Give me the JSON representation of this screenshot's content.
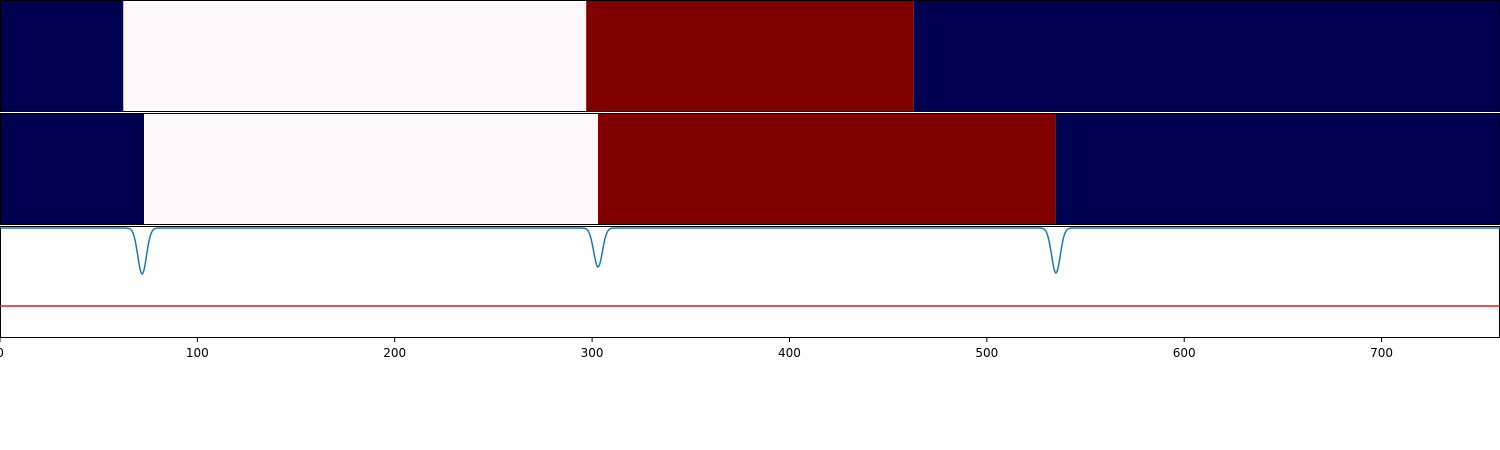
{
  "chart_data": {
    "type": "heatmap",
    "title": "",
    "xlabel": "",
    "ylabel": "",
    "xlim": [
      0,
      760
    ],
    "x_ticks": [
      0,
      100,
      200,
      300,
      400,
      500,
      600,
      700
    ],
    "x_tick_labels": [
      "0",
      "100",
      "200",
      "300",
      "400",
      "500",
      "600",
      "700"
    ],
    "grid": false,
    "colors": {
      "low": "#000050",
      "mid": "#fff8fb",
      "high": "#800000",
      "signal_line": "#1f77b4",
      "threshold_line": "#e41a1c"
    },
    "segment_rows": [
      {
        "segments": [
          {
            "start": 0,
            "end": 62.5,
            "level": "low"
          },
          {
            "start": 62.5,
            "end": 297,
            "level": "mid"
          },
          {
            "start": 297,
            "end": 463,
            "level": "high"
          },
          {
            "start": 463,
            "end": 760,
            "level": "low"
          }
        ]
      },
      {
        "segments": [
          {
            "start": 0,
            "end": 73,
            "level": "low"
          },
          {
            "start": 73,
            "end": 303,
            "level": "mid"
          },
          {
            "start": 303,
            "end": 535,
            "level": "high"
          },
          {
            "start": 535,
            "end": 760,
            "level": "low"
          }
        ]
      }
    ],
    "signal": {
      "ylim": [
        -1.1,
        0.02
      ],
      "baseline": 0,
      "threshold": -0.78,
      "dips": [
        {
          "center": 72,
          "depth": -0.46
        },
        {
          "center": 303,
          "depth": -0.39
        },
        {
          "center": 535,
          "depth": -0.45
        }
      ]
    }
  }
}
